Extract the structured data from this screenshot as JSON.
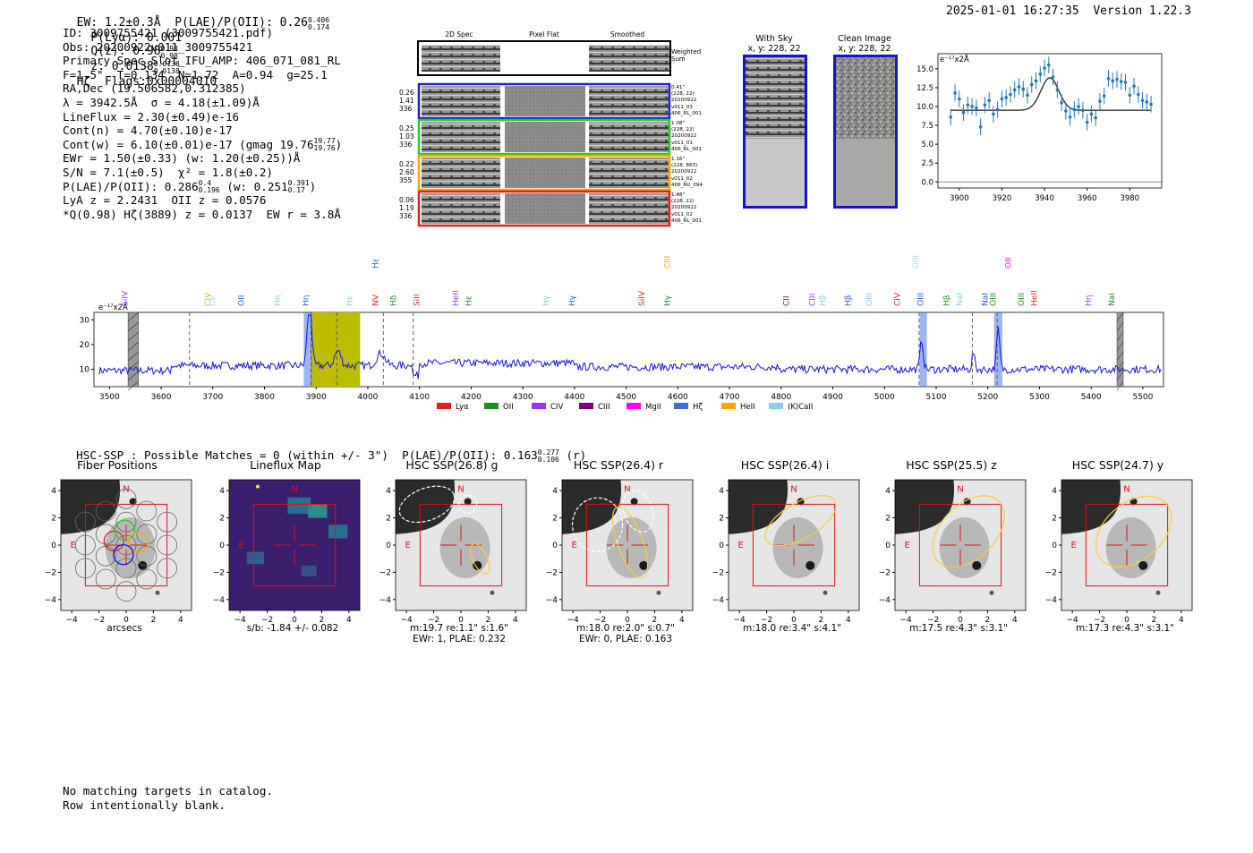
{
  "header": {
    "left": "EW: 1.2±0.3Å  P(LAE)/P(OII): 0.26",
    "left_sup": "0.406",
    "left_sub": "0.174",
    "plya": "P(Lyα): 0.001",
    "qz": "Q(z): 0.98",
    "qz_sup": "0.98",
    "qz_sub": "0.98",
    "z": "z: 0.0138",
    "z_sup": "0.0138",
    "z_sub": "0.0138",
    "z_tail": "Hζ  Flags:0x00004010",
    "right": "2025-01-01 16:27:35  Version 1.22.3"
  },
  "info": {
    "l1": "ID: 3009755421 (3009755421.pdf)",
    "l2": "Obs: 20200922v011_3009755421",
    "l3": "Primary Spec_Slot_IFU_AMP: 406_071_081_RL",
    "l4": "F=1.5\"  T=0.134  N=1.72  A=0.94  g=25.1",
    "l5": "RA,Dec (19.506582,0.312385)",
    "l6": "λ = 3942.5Å  σ = 4.18(±1.09)Å",
    "l7": "LineFlux = 2.30(±0.49)e-16",
    "l8": "Cont(n) = 4.70(±0.10)e-17",
    "l9": "Cont(w) = 6.10(±0.01)e-17 (gmag 19.76",
    "l9_sup": "19.77",
    "l9_sub": "19.76",
    "l9_tail": ")",
    "l10": "EWr = 1.50(±0.33) (w: 1.20(±0.25))Å",
    "l11": "S/N = 7.1(±0.5)  χ² = 1.8(±0.2)",
    "l12": "P(LAE)/P(OII): 0.286",
    "l12_sup": "0.4",
    "l12_sub": "0.196",
    "l12_mid": " (w: 0.251",
    "l12_sup2": "0.391",
    "l12_sub2": "0.17",
    "l12_tail": ")",
    "l13": "LyA z = 2.2431  OII z = 0.0576",
    "l14": "*Q(0.98) Hζ(3889) z = 0.0137  EW r = 3.8Å"
  },
  "fibers": {
    "col_titles": [
      "2D Spec",
      "Pixel Flat",
      "Smoothed"
    ],
    "weighted_label": "Weighted\nSum",
    "rows": [
      {
        "left": "0.26\n1.41\n336",
        "right": "0.41\"\n(228, 22)\n20200922\nv011_03\n406_RL_001",
        "color": "#1f1fd0"
      },
      {
        "left": "0.25\n1.03\n336",
        "right": "1.08\"\n(228, 22)\n20200922\nv011_01\n406_RL_001",
        "color": "#22cc22"
      },
      {
        "left": "0.22\n2.60\n355",
        "right": "1.16\"\n(228, 863)\n20200922\nv011_02\n406_RU_094",
        "color": "#ffa500"
      },
      {
        "left": "0.06\n1.19\n336",
        "right": "1.48\"\n(228, 22)\n20200922\nv011_02\n406_RL_001",
        "color": "#e02020"
      }
    ]
  },
  "sky": {
    "with_sky_title": "With Sky",
    "with_sky_xy": "x, y: 228, 22",
    "clean_title": "Clean Image",
    "clean_xy": "x, y: 228, 22"
  },
  "fit_plot": {
    "unit_label": "e⁻¹⁷x2Å",
    "x_ticks": [
      3900,
      3920,
      3940,
      3960,
      3980
    ],
    "y_ticks": [
      "0.0",
      "2.5",
      "5.0",
      "7.5",
      "10.0",
      "12.5",
      "15.0"
    ],
    "xlim": [
      3890,
      3995
    ],
    "ylim": [
      -0.8,
      17
    ],
    "continuum": 9.5,
    "gauss_center": 3942.5,
    "gauss_sigma": 4.18,
    "gauss_amp": 4.3,
    "points_x": [
      3896,
      3898,
      3900,
      3902,
      3904,
      3906,
      3908,
      3910,
      3912,
      3914,
      3916,
      3918,
      3920,
      3922,
      3924,
      3926,
      3928,
      3930,
      3932,
      3934,
      3936,
      3938,
      3940,
      3942,
      3944,
      3946,
      3948,
      3950,
      3952,
      3954,
      3956,
      3958,
      3960,
      3962,
      3964,
      3966,
      3968,
      3970,
      3972,
      3974,
      3976,
      3978,
      3980,
      3982,
      3984,
      3986,
      3988,
      3990
    ],
    "points_y": [
      8.6,
      11.8,
      11.0,
      9.2,
      10.2,
      10.0,
      9.8,
      7.3,
      10.2,
      10.8,
      9.0,
      9.6,
      11.0,
      11.2,
      11.6,
      12.2,
      12.6,
      12.3,
      11.5,
      12.9,
      13.4,
      14.3,
      15.1,
      15.5,
      13.9,
      12.2,
      10.5,
      9.4,
      8.6,
      9.6,
      10.0,
      9.5,
      7.9,
      9.0,
      8.5,
      10.7,
      11.4,
      13.7,
      13.4,
      13.6,
      13.3,
      13.2,
      11.5,
      12.7,
      11.6,
      10.8,
      10.6,
      10.3
    ]
  },
  "spectrum": {
    "unit_label": "e⁻¹⁷x2Å",
    "x_ticks": [
      3500,
      3600,
      3700,
      3800,
      3900,
      4000,
      4100,
      4200,
      4300,
      4400,
      4500,
      4600,
      4700,
      4800,
      4900,
      5000,
      5100,
      5200,
      5300,
      5400,
      5500
    ],
    "y_ticks": [
      10,
      20,
      30
    ],
    "xlim": [
      3470,
      5540
    ],
    "ylim": [
      3,
      33
    ],
    "line_labels": [
      {
        "text": "SiIV",
        "x": 3535,
        "color": "#9933ff",
        "tier": 1
      },
      {
        "text": "CIV",
        "x": 3695,
        "color": "#ffa500",
        "tier": 1
      },
      {
        "text": "OII",
        "x": 3705,
        "color": "#add8e6",
        "tier": 1
      },
      {
        "text": "OII",
        "x": 3760,
        "color": "#1f5fd0",
        "tier": 1
      },
      {
        "text": "Hη",
        "x": 3830,
        "color": "#87ceeb",
        "tier": 1
      },
      {
        "text": "Hη",
        "x": 3885,
        "color": "#1f5fd0",
        "tier": 1
      },
      {
        "text": "Hε",
        "x": 3970,
        "color": "#87ceeb",
        "tier": 1
      },
      {
        "text": "Hε",
        "x": 4020,
        "color": "#1f5fd0",
        "tier": 0
      },
      {
        "text": "NV",
        "x": 4020,
        "color": "#e02020",
        "tier": 1
      },
      {
        "text": "Hδ",
        "x": 4055,
        "color": "#228b22",
        "tier": 1
      },
      {
        "text": "SiII",
        "x": 4100,
        "color": "#e02020",
        "tier": 1
      },
      {
        "text": "HeII",
        "x": 4175,
        "color": "#9933ff",
        "tier": 1
      },
      {
        "text": "Hε",
        "x": 4200,
        "color": "#228b22",
        "tier": 1
      },
      {
        "text": "Hγ",
        "x": 4350,
        "color": "#87ceeb",
        "tier": 1
      },
      {
        "text": "Hγ",
        "x": 4400,
        "color": "#1f5fd0",
        "tier": 1
      },
      {
        "text": "SiIV",
        "x": 4535,
        "color": "#e02020",
        "tier": 1
      },
      {
        "text": "Hγ",
        "x": 4585,
        "color": "#228b22",
        "tier": 1
      },
      {
        "text": "CIII",
        "x": 4585,
        "color": "#ffa500",
        "tier": 0
      },
      {
        "text": "CII",
        "x": 4815,
        "color": "#800080",
        "tier": 1
      },
      {
        "text": "CIII",
        "x": 4865,
        "color": "#9933ff",
        "tier": 1
      },
      {
        "text": "Hβ",
        "x": 4885,
        "color": "#87ceeb",
        "tier": 1
      },
      {
        "text": "Hβ",
        "x": 4935,
        "color": "#1f5fd0",
        "tier": 1
      },
      {
        "text": "OIII",
        "x": 4975,
        "color": "#87ceeb",
        "tier": 1
      },
      {
        "text": "CIV",
        "x": 5030,
        "color": "#e02020",
        "tier": 1
      },
      {
        "text": "OIII",
        "x": 5065,
        "color": "#add8e6",
        "tier": 0
      },
      {
        "text": "OIII",
        "x": 5075,
        "color": "#1f5fd0",
        "tier": 1
      },
      {
        "text": "Hβ",
        "x": 5125,
        "color": "#228b22",
        "tier": 1
      },
      {
        "text": "NaI",
        "x": 5150,
        "color": "#87ceeb",
        "tier": 1
      },
      {
        "text": "NaI",
        "x": 5200,
        "color": "#1f5fd0",
        "tier": 1
      },
      {
        "text": "OIII",
        "x": 5215,
        "color": "#228b22",
        "tier": 1
      },
      {
        "text": "OII",
        "x": 5245,
        "color": "#ff00ff",
        "tier": 0
      },
      {
        "text": "OIII",
        "x": 5270,
        "color": "#228b22",
        "tier": 1
      },
      {
        "text": "HeII",
        "x": 5295,
        "color": "#e02020",
        "tier": 1
      },
      {
        "text": "Hη",
        "x": 5400,
        "color": "#9933ff",
        "tier": 1
      },
      {
        "text": "NaI",
        "x": 5445,
        "color": "#228b22",
        "tier": 1
      }
    ],
    "legend": [
      {
        "label": "Lyα",
        "color": "#e02020"
      },
      {
        "label": "OII",
        "color": "#228b22"
      },
      {
        "label": "CIV",
        "color": "#9933ff"
      },
      {
        "label": "CIII",
        "color": "#800080"
      },
      {
        "label": "MgII",
        "color": "#ff00ff"
      },
      {
        "label": "Hζ",
        "color": "#4169e1"
      },
      {
        "label": "HeII",
        "color": "#ffa500"
      },
      {
        "label": "(K)CaII",
        "color": "#87ceeb"
      }
    ]
  },
  "hsc": {
    "summary": "HSC-SSP : Possible Matches = 0 (within +/- 3\")  P(LAE)/P(OII): 0.163",
    "summary_sup": "0.277",
    "summary_sub": "0.106",
    "summary_tail": " (r)",
    "axis_ticks": [
      "4",
      "2",
      "0",
      "−2",
      "−4"
    ],
    "north": "N",
    "east": "E",
    "panels": [
      {
        "title": "Fiber Positions",
        "cap1": "arcsecs",
        "cap2": ""
      },
      {
        "title": "Lineflux Map",
        "cap1": "s/b: -1.84 +/- 0.082",
        "cap2": ""
      },
      {
        "title": "HSC SSP(26.8) g",
        "cap1": "m:19.7  re:1.1\"  s:1.6\"",
        "cap2": "EWr: 1, PLAE: 0.232"
      },
      {
        "title": "HSC SSP(26.4) r",
        "cap1": "m:18.0  re:2.0\"  s:0.7\"",
        "cap2": "EWr: 0, PLAE: 0.163"
      },
      {
        "title": "HSC SSP(26.4) i",
        "cap1": "m:18.0  re:3.4\"  s:4.1\"",
        "cap2": ""
      },
      {
        "title": "HSC SSP(25.5) z",
        "cap1": "m:17.5  re:4.3\"  s:3.1\"",
        "cap2": ""
      },
      {
        "title": "HSC SSP(24.7) y",
        "cap1": "m:17.3  re:4.3\"  s:3.1\"",
        "cap2": ""
      }
    ]
  },
  "footer": {
    "l1": "No matching targets in catalog.",
    "l2": "Row intentionally blank."
  }
}
